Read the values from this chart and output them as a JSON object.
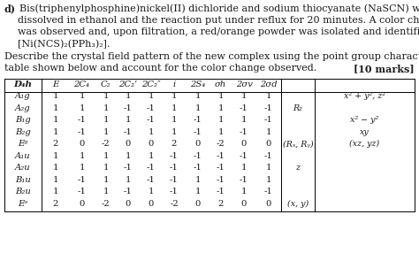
{
  "line1_bold": "d)",
  "line1_rest": "Bis(triphenylphosphine)nickel(II) dichloride and sodium thiocyanate (NaSCN) were",
  "line2": "dissolved in ethanol and the reaction put under reflux for 20 minutes. A color change",
  "line3": "was observed and, upon filtration, a red/orange powder was isolated and identified as",
  "line4": "[Ni(NCS)₂(PPh₃)₂].",
  "line5": "Describe the crystal field pattern of the new complex using the point group character",
  "line6": "table shown below and account for the color change observed.",
  "marks": "[10 marks]",
  "header": [
    "D₄h",
    "E",
    "2C₄",
    "C₂",
    "2C₂’",
    "2C₂″",
    "i",
    "2S₄",
    "σh",
    "2σv",
    "2σd"
  ],
  "rows": [
    [
      "A₁g",
      "1",
      "1",
      "1",
      "1",
      "1",
      "1",
      "1",
      "1",
      "1",
      "1",
      "",
      "x² + y², z²"
    ],
    [
      "A₂g",
      "1",
      "1",
      "1",
      "-1",
      "-1",
      "1",
      "1",
      "1",
      "-1",
      "-1",
      "R₂",
      ""
    ],
    [
      "B₁g",
      "1",
      "-1",
      "1",
      "1",
      "-1",
      "1",
      "-1",
      "1",
      "1",
      "-1",
      "",
      "x² − y²"
    ],
    [
      "B₂g",
      "1",
      "-1",
      "1",
      "-1",
      "1",
      "1",
      "-1",
      "1",
      "-1",
      "1",
      "",
      "xy"
    ],
    [
      "Eᵍ",
      "2",
      "0",
      "-2",
      "0",
      "0",
      "2",
      "0",
      "-2",
      "0",
      "0",
      "(Rₓ, Rᵧ)",
      "(xz, yz)"
    ],
    [
      "A₁u",
      "1",
      "1",
      "1",
      "1",
      "1",
      "-1",
      "-1",
      "-1",
      "-1",
      "-1",
      "",
      ""
    ],
    [
      "A₂u",
      "1",
      "1",
      "1",
      "-1",
      "-1",
      "-1",
      "-1",
      "-1",
      "1",
      "1",
      "z",
      ""
    ],
    [
      "B₁u",
      "1",
      "-1",
      "1",
      "1",
      "-1",
      "-1",
      "1",
      "-1",
      "-1",
      "1",
      "",
      ""
    ],
    [
      "B₂u",
      "1",
      "-1",
      "1",
      "-1",
      "1",
      "-1",
      "1",
      "-1",
      "1",
      "-1",
      "",
      ""
    ],
    [
      "Eᵊ",
      "2",
      "0",
      "-2",
      "0",
      "0",
      "-2",
      "0",
      "2",
      "0",
      "0",
      "(x, y)",
      ""
    ]
  ],
  "bg_color": "#ffffff",
  "text_color": "#1a1a1a",
  "fig_width": 4.74,
  "fig_height": 2.86,
  "dpi": 100
}
